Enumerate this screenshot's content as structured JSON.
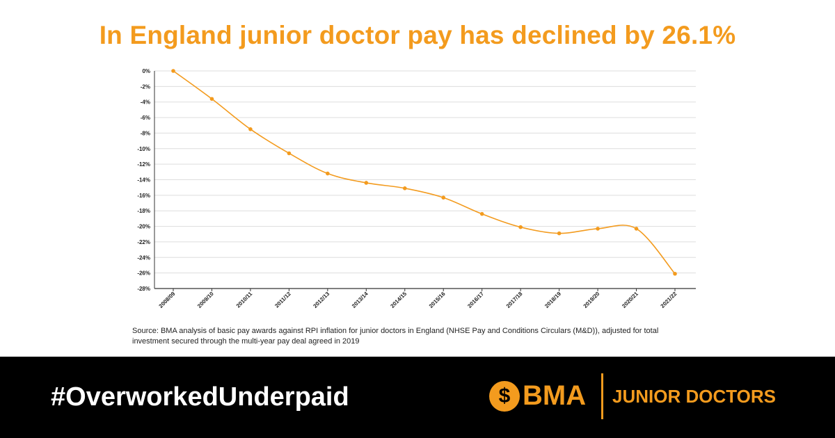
{
  "headline": "In England junior doctor pay has declined by 26.1%",
  "chart_data": {
    "type": "line",
    "categories": [
      "2008/09",
      "2009/10",
      "2010/11",
      "2011/12",
      "2012/13",
      "2013/14",
      "2014/15",
      "2015/16",
      "2016/17",
      "2017/18",
      "2018/19",
      "2019/20",
      "2020/21",
      "2021/22"
    ],
    "values": [
      0,
      -3.6,
      -7.5,
      -10.6,
      -13.2,
      -14.4,
      -15.1,
      -16.3,
      -18.4,
      -20.1,
      -20.9,
      -20.3,
      -20.3,
      -26.1
    ],
    "y_ticks": [
      "0%",
      "-2%",
      "-4%",
      "-6%",
      "-8%",
      "-10%",
      "-12%",
      "-14%",
      "-16%",
      "-18%",
      "-20%",
      "-22%",
      "-24%",
      "-26%",
      "-28%"
    ],
    "ylim": [
      -28,
      0
    ],
    "grid": true,
    "line_color": "#f39b1e"
  },
  "source_note": "Source: BMA analysis of basic pay awards against RPI inflation for junior doctors in England (NHSE Pay and Conditions Circulars (M&D)), adjusted for total investment secured through the multi-year pay deal agreed in 2019",
  "footer": {
    "hashtag": "#OverworkedUnderpaid",
    "logo_text": "BMA",
    "logo_icon": "bma-emblem-icon",
    "subtitle": "JUNIOR DOCTORS"
  },
  "colors": {
    "accent": "#f39b1e",
    "footer_bg": "#000000"
  }
}
